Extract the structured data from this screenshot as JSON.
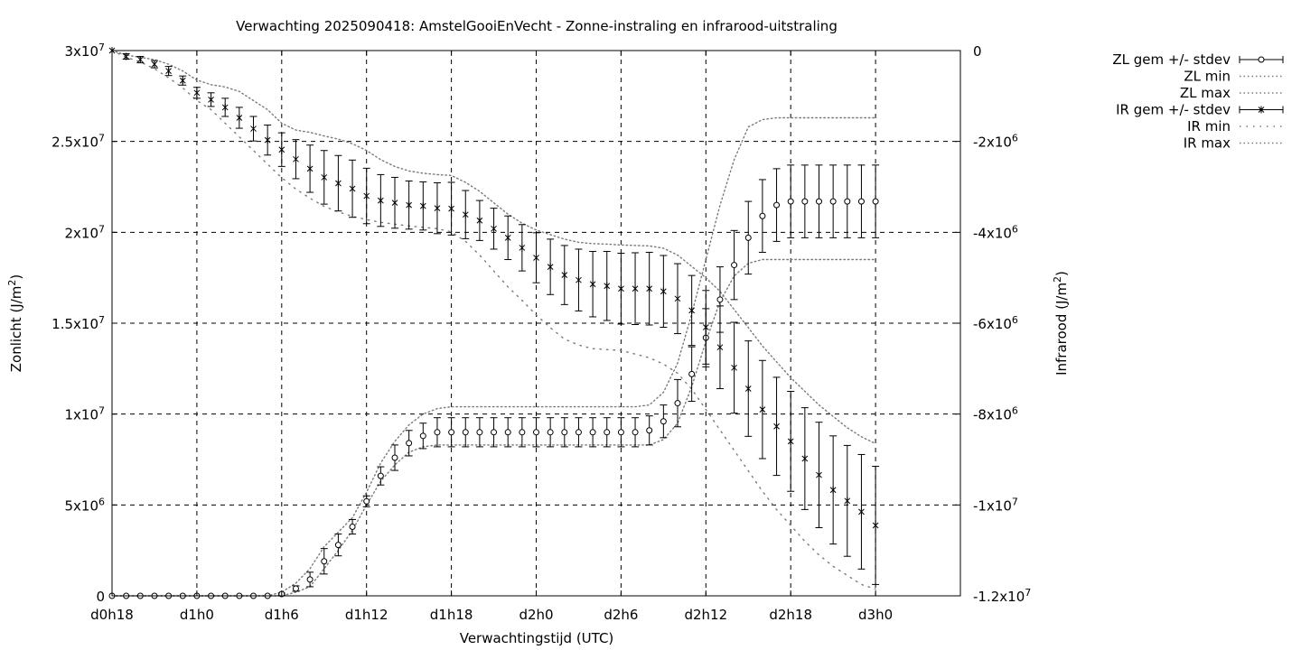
{
  "chart_data": {
    "type": "line",
    "title": "Verwachting 2025090418: AmstelGooiEnVecht - Zonne-instraling en infrarood-uitstraling",
    "xlabel": "Verwachtingstijd (UTC)",
    "ylabel": "Zonlicht (J/m2)",
    "y2label": "Infrarood (J/m2)",
    "x_range": [
      18,
      78
    ],
    "x_ticks": [
      {
        "x": 18,
        "label": "d0h18"
      },
      {
        "x": 24,
        "label": "d1h0"
      },
      {
        "x": 30,
        "label": "d1h6"
      },
      {
        "x": 36,
        "label": "d1h12"
      },
      {
        "x": 42,
        "label": "d1h18"
      },
      {
        "x": 48,
        "label": "d2h0"
      },
      {
        "x": 54,
        "label": "d2h6"
      },
      {
        "x": 60,
        "label": "d2h12"
      },
      {
        "x": 66,
        "label": "d2h18"
      },
      {
        "x": 72,
        "label": "d3h0"
      }
    ],
    "y_range": [
      0,
      30000000
    ],
    "y_ticks": [
      {
        "v": 0,
        "label": "0"
      },
      {
        "v": 5000000,
        "label": "5x10^6"
      },
      {
        "v": 10000000,
        "label": "1x10^7"
      },
      {
        "v": 15000000,
        "label": "1.5x10^7"
      },
      {
        "v": 20000000,
        "label": "2x10^7"
      },
      {
        "v": 25000000,
        "label": "2.5x10^7"
      },
      {
        "v": 30000000,
        "label": "3x10^7"
      }
    ],
    "y2_range": [
      -12000000,
      0
    ],
    "y2_ticks": [
      {
        "v": 0,
        "label": "0"
      },
      {
        "v": -2000000,
        "label": "-2x10^6"
      },
      {
        "v": -4000000,
        "label": "-4x10^6"
      },
      {
        "v": -6000000,
        "label": "-6x10^6"
      },
      {
        "v": -8000000,
        "label": "-8x10^6"
      },
      {
        "v": -10000000,
        "label": "-1x10^7"
      },
      {
        "v": -12000000,
        "label": "-1.2x10^7"
      }
    ],
    "grid": true,
    "legend_position": "top-right, outside",
    "legend": [
      {
        "label": "ZL gem +/- stdev",
        "style": "errorbar-circle"
      },
      {
        "label": "ZL min",
        "style": "dotted"
      },
      {
        "label": "ZL max",
        "style": "dotted"
      },
      {
        "label": "IR gem +/- stdev",
        "style": "errorbar-star"
      },
      {
        "label": "IR min",
        "style": "dotted-sparse"
      },
      {
        "label": "IR max",
        "style": "dotted"
      }
    ],
    "x": [
      18,
      19,
      20,
      21,
      22,
      23,
      24,
      25,
      26,
      27,
      28,
      29,
      30,
      31,
      32,
      33,
      34,
      35,
      36,
      37,
      38,
      39,
      40,
      41,
      42,
      43,
      44,
      45,
      46,
      47,
      48,
      49,
      50,
      51,
      52,
      53,
      54,
      55,
      56,
      57,
      58,
      59,
      60,
      61,
      62,
      63,
      64,
      65,
      66,
      67,
      68,
      69,
      70,
      71,
      72
    ],
    "series": [
      {
        "name": "ZL gem +/- stdev",
        "axis": "y",
        "mean": [
          0,
          0,
          0,
          0,
          0,
          0,
          0,
          0,
          0,
          0,
          0,
          0,
          100000,
          400000,
          900000,
          1900000,
          2800000,
          3800000,
          5200000,
          6600000,
          7600000,
          8400000,
          8800000,
          9000000,
          9000000,
          9000000,
          9000000,
          9000000,
          9000000,
          9000000,
          9000000,
          9000000,
          9000000,
          9000000,
          9000000,
          9000000,
          9000000,
          9000000,
          9100000,
          9600000,
          10600000,
          12200000,
          14200000,
          16300000,
          18200000,
          19700000,
          20900000,
          21500000,
          21700000,
          21700000,
          21700000,
          21700000,
          21700000,
          21700000,
          21700000
        ],
        "stdev": [
          0,
          0,
          0,
          0,
          0,
          0,
          0,
          0,
          0,
          0,
          0,
          0,
          50000,
          150000,
          400000,
          700000,
          600000,
          400000,
          300000,
          500000,
          700000,
          700000,
          700000,
          800000,
          800000,
          800000,
          800000,
          800000,
          800000,
          800000,
          800000,
          800000,
          800000,
          800000,
          800000,
          800000,
          800000,
          800000,
          800000,
          900000,
          1300000,
          1500000,
          1600000,
          1800000,
          1900000,
          2000000,
          2000000,
          2000000,
          2000000,
          2000000,
          2000000,
          2000000,
          2000000,
          2000000,
          2000000
        ]
      },
      {
        "name": "ZL min",
        "axis": "y",
        "values": [
          0,
          0,
          0,
          0,
          0,
          0,
          0,
          0,
          0,
          0,
          0,
          0,
          0,
          200000,
          500000,
          1500000,
          2500000,
          3600000,
          5000000,
          6300000,
          7200000,
          7900000,
          8200000,
          8300000,
          8300000,
          8300000,
          8300000,
          8300000,
          8300000,
          8300000,
          8300000,
          8300000,
          8300000,
          8300000,
          8300000,
          8300000,
          8300000,
          8300000,
          8300000,
          8600000,
          9500000,
          11500000,
          14000000,
          16200000,
          17600000,
          18300000,
          18500000,
          18500000,
          18500000,
          18500000,
          18500000,
          18500000,
          18500000,
          18500000,
          18500000
        ]
      },
      {
        "name": "ZL max",
        "axis": "y",
        "values": [
          0,
          0,
          0,
          0,
          0,
          0,
          0,
          0,
          0,
          0,
          0,
          0,
          200000,
          700000,
          1500000,
          2700000,
          3500000,
          4300000,
          5700000,
          7300000,
          8500000,
          9400000,
          10000000,
          10300000,
          10400000,
          10400000,
          10400000,
          10400000,
          10400000,
          10400000,
          10400000,
          10400000,
          10400000,
          10400000,
          10400000,
          10400000,
          10400000,
          10400000,
          10500000,
          11200000,
          12800000,
          15500000,
          18500000,
          21500000,
          24000000,
          25800000,
          26200000,
          26300000,
          26300000,
          26300000,
          26300000,
          26300000,
          26300000,
          26300000,
          26300000
        ]
      },
      {
        "name": "IR gem +/- stdev",
        "axis": "y2",
        "mean": [
          0,
          -130000,
          -200000,
          -300000,
          -450000,
          -660000,
          -930000,
          -1080000,
          -1250000,
          -1480000,
          -1720000,
          -1970000,
          -2180000,
          -2390000,
          -2600000,
          -2790000,
          -2920000,
          -3040000,
          -3200000,
          -3300000,
          -3350000,
          -3400000,
          -3420000,
          -3470000,
          -3480000,
          -3610000,
          -3740000,
          -3920000,
          -4120000,
          -4340000,
          -4560000,
          -4760000,
          -4940000,
          -5050000,
          -5140000,
          -5180000,
          -5240000,
          -5240000,
          -5240000,
          -5300000,
          -5460000,
          -5720000,
          -6090000,
          -6530000,
          -6980000,
          -7440000,
          -7900000,
          -8270000,
          -8600000,
          -8980000,
          -9340000,
          -9670000,
          -9910000,
          -10150000,
          -10450000
        ],
        "stdev": [
          0,
          60000,
          70000,
          80000,
          100000,
          100000,
          120000,
          150000,
          200000,
          230000,
          270000,
          330000,
          370000,
          430000,
          520000,
          590000,
          610000,
          630000,
          610000,
          570000,
          560000,
          530000,
          530000,
          560000,
          580000,
          530000,
          440000,
          450000,
          480000,
          510000,
          550000,
          610000,
          650000,
          680000,
          720000,
          760000,
          780000,
          790000,
          800000,
          790000,
          770000,
          770000,
          810000,
          910000,
          1000000,
          1050000,
          1080000,
          1080000,
          1100000,
          1120000,
          1160000,
          1190000,
          1220000,
          1260000,
          1300000
        ]
      },
      {
        "name": "IR min",
        "axis": "y2",
        "values": [
          0,
          -150000,
          -250000,
          -400000,
          -600000,
          -820000,
          -1100000,
          -1300000,
          -1600000,
          -1900000,
          -2200000,
          -2500000,
          -2800000,
          -3050000,
          -3250000,
          -3430000,
          -3550000,
          -3650000,
          -3720000,
          -3780000,
          -3820000,
          -3860000,
          -3890000,
          -3920000,
          -3990000,
          -4200000,
          -4500000,
          -4850000,
          -5200000,
          -5500000,
          -5820000,
          -6100000,
          -6350000,
          -6480000,
          -6560000,
          -6580000,
          -6600000,
          -6680000,
          -6760000,
          -6900000,
          -7100000,
          -7450000,
          -7900000,
          -8350000,
          -8800000,
          -9250000,
          -9700000,
          -10100000,
          -10450000,
          -10800000,
          -11100000,
          -11350000,
          -11550000,
          -11750000,
          -11850000
        ]
      },
      {
        "name": "IR max",
        "axis": "y2",
        "values": [
          0,
          -100000,
          -150000,
          -200000,
          -300000,
          -450000,
          -650000,
          -750000,
          -800000,
          -900000,
          -1100000,
          -1300000,
          -1600000,
          -1750000,
          -1800000,
          -1880000,
          -1950000,
          -2050000,
          -2200000,
          -2400000,
          -2550000,
          -2650000,
          -2700000,
          -2730000,
          -2750000,
          -2900000,
          -3100000,
          -3350000,
          -3600000,
          -3800000,
          -3950000,
          -4050000,
          -4150000,
          -4220000,
          -4250000,
          -4260000,
          -4280000,
          -4290000,
          -4300000,
          -4350000,
          -4500000,
          -4750000,
          -5000000,
          -5300000,
          -5700000,
          -6100000,
          -6500000,
          -6850000,
          -7200000,
          -7500000,
          -7800000,
          -8050000,
          -8300000,
          -8500000,
          -8650000
        ]
      }
    ]
  }
}
